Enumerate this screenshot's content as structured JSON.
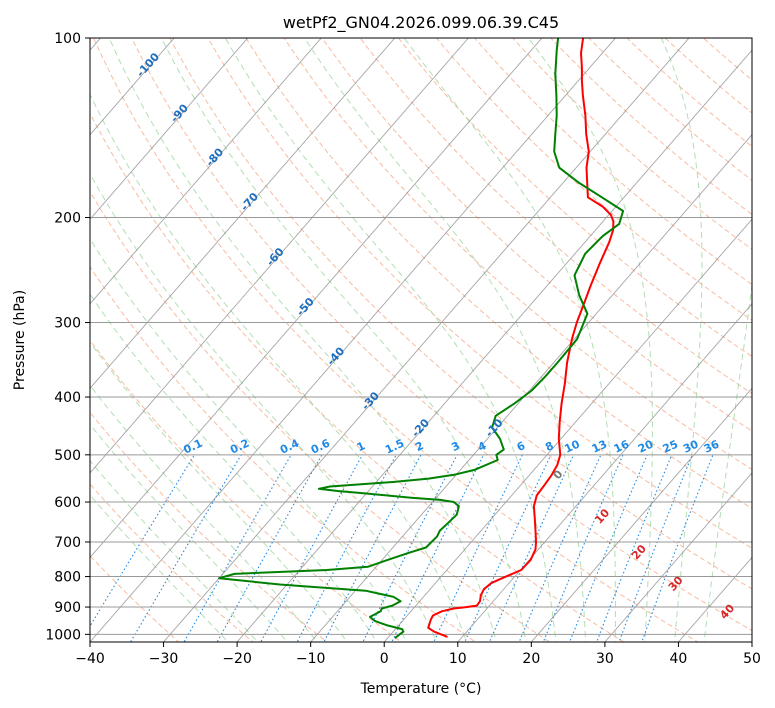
{
  "chart_data": {
    "type": "skew-t",
    "title": "wetPf2_GN04.2026.099.06.39.C45",
    "xlabel": "Temperature (°C)",
    "ylabel": "Pressure (hPa)",
    "xlim": [
      -40,
      50
    ],
    "ylim": [
      1030,
      100
    ],
    "x_ticks": [
      -40,
      -30,
      -20,
      -10,
      0,
      10,
      20,
      30,
      40,
      50
    ],
    "x_tick_labels": [
      "−40",
      "−30",
      "−20",
      "−10",
      "0",
      "10",
      "20",
      "30",
      "40",
      "50"
    ],
    "y_ticks": [
      1000,
      900,
      800,
      700,
      600,
      500,
      400,
      300,
      200,
      100
    ],
    "y_tick_labels": [
      "1000",
      "900",
      "800",
      "700",
      "600",
      "500",
      "400",
      "300",
      "200",
      "100"
    ],
    "colors": {
      "temperature": "#ff0000",
      "dewpoint": "#008000",
      "isotherm": "#888888",
      "dry_adiabat": "#f4a582",
      "moist_adiabat": "#a6d8a6",
      "mixing_ratio": "#1f8ae6",
      "isotherm_label": "#1f6fbf",
      "moist_label": "#d62728",
      "zero_label": "#777777"
    },
    "isotherm_labels": [
      "-100",
      "-90",
      "-80",
      "-70",
      "-60",
      "-50",
      "-40",
      "-30",
      "-20",
      "-10"
    ],
    "mixing_ratio_labels": [
      "0.1",
      "0.2",
      "0.4",
      "0.6",
      "1",
      "1.5",
      "2",
      "3",
      "4",
      "6",
      "8",
      "10",
      "13",
      "16",
      "20",
      "25",
      "30",
      "36"
    ],
    "mixing_ratio_values": [
      0.1,
      0.2,
      0.4,
      0.6,
      1,
      1.5,
      2,
      3,
      4,
      6,
      8,
      10,
      13,
      16,
      20,
      25,
      30,
      36
    ],
    "wet_bulb_labels": [
      "0",
      "10",
      "20",
      "30",
      "40"
    ],
    "series": [
      {
        "name": "Temperature",
        "pressure": [
          1010,
          990,
          975,
          960,
          945,
          930,
          915,
          905,
          900,
          895,
          880,
          860,
          840,
          820,
          800,
          780,
          750,
          720,
          700,
          670,
          640,
          610,
          585,
          560,
          540,
          520,
          500,
          470,
          440,
          410,
          380,
          350,
          320,
          300,
          280,
          260,
          240,
          220,
          210,
          203,
          198,
          192,
          185,
          175,
          165,
          155,
          145,
          135,
          125,
          118,
          112,
          106,
          100
        ],
        "values": [
          8,
          5.6,
          4.3,
          4,
          3.7,
          3.5,
          4.2,
          5.5,
          7,
          8.3,
          8.2,
          7.6,
          7.3,
          7.6,
          8.8,
          10.1,
          10.2,
          9.6,
          8.8,
          7.4,
          5.9,
          4.3,
          3.4,
          3.2,
          3,
          2.6,
          1.8,
          -0.3,
          -2.2,
          -4.1,
          -6,
          -8.2,
          -10.3,
          -11.6,
          -12.8,
          -14.1,
          -15.4,
          -16.7,
          -17.6,
          -18.6,
          -19.7,
          -21.7,
          -24.9,
          -26.7,
          -28.6,
          -30.2,
          -32.6,
          -34.9,
          -37.6,
          -39.5,
          -41.1,
          -42.9,
          -44.4
        ]
      },
      {
        "name": "Dewpoint",
        "pressure": [
          1015,
          1000,
          990,
          980,
          965,
          950,
          935,
          915,
          905,
          895,
          880,
          865,
          845,
          825,
          805,
          792,
          788,
          780,
          770,
          750,
          730,
          715,
          700,
          685,
          670,
          650,
          630,
          610,
          600,
          595,
          590,
          580,
          575,
          570,
          565,
          560,
          555,
          548,
          540,
          530,
          510,
          500,
          490,
          470,
          450,
          430,
          410,
          390,
          370,
          350,
          320,
          290,
          270,
          250,
          230,
          215,
          205,
          195,
          185,
          175,
          165,
          155,
          145,
          135,
          125,
          115,
          105,
          100
        ],
        "values": [
          1,
          1.2,
          1.4,
          0.9,
          -1.7,
          -3.7,
          -4.9,
          -4.1,
          -4.3,
          -3.2,
          -2.6,
          -4.1,
          -8.6,
          -21,
          -30,
          -28.4,
          -24.7,
          -16.3,
          -11.1,
          -9.2,
          -7.2,
          -5.5,
          -5.4,
          -5.3,
          -5.6,
          -5.4,
          -5.2,
          -5.9,
          -7.1,
          -9.2,
          -13.4,
          -20.4,
          -24.2,
          -27,
          -25.8,
          -21.8,
          -17.6,
          -13.3,
          -10.3,
          -8.1,
          -6.1,
          -6.9,
          -6.5,
          -8.3,
          -10.7,
          -11.6,
          -10.5,
          -9.7,
          -9.5,
          -9.5,
          -9.6,
          -11.2,
          -14.5,
          -17.5,
          -18.6,
          -18.3,
          -17.5,
          -18.5,
          -23,
          -27.8,
          -32.3,
          -34.9,
          -36.8,
          -38.8,
          -41.2,
          -43.9,
          -46.5,
          -47.8
        ]
      }
    ]
  }
}
